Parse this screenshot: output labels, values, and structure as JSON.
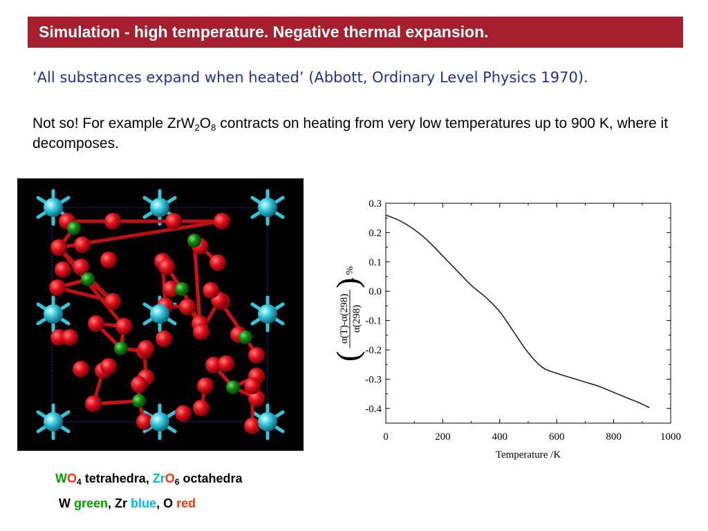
{
  "title": "Simulation - high temperature.  Negative thermal expansion.",
  "quote": "‘All substances expand when heated’ (Abbott, Ordinary Level Physics 1970).",
  "paragraph": {
    "intro": "Not so!    For example ",
    "formula_zr": "ZrW",
    "formula_w_sub": "2",
    "formula_o": "O",
    "formula_o_sub": "8",
    "rest": " contracts on heating from very low temperatures up to 900 K, where it decomposes."
  },
  "caption": {
    "w": "W",
    "o1": "O",
    "sub4": "4",
    "tetra": " tetrahedra, ",
    "zr": "Zr",
    "o2": "O",
    "sub6": "6",
    "octa": " octahedra",
    "line2_w": "W ",
    "line2_green": "green",
    "line2_comma1": ", Zr ",
    "line2_blue": "blue",
    "line2_comma2": ", O ",
    "line2_red": "red"
  },
  "colors": {
    "title_bg": "#a61f2e",
    "quote": "#1f2f9e",
    "w_atom": "#0e8a0e",
    "zr_atom": "#34c6dc",
    "o_atom": "#e0101a",
    "green_text": "#00a000",
    "blue_text": "#00b8f0",
    "red_text": "#ff3300"
  },
  "chart_data": {
    "type": "line",
    "xlabel": "Temperature /K",
    "ylabel": "(α(T)-α(298) / α(298)), %",
    "ylabel_num": "α(T)-α(298)",
    "ylabel_den": "α(298)",
    "ylabel_unit": ", %",
    "xlim": [
      0,
      1000
    ],
    "ylim": [
      -0.45,
      0.3
    ],
    "xticks": [
      "0",
      "200",
      "400",
      "600",
      "800",
      "1000"
    ],
    "xtick_values": [
      0,
      200,
      400,
      600,
      800,
      1000
    ],
    "yticks": [
      "0.3",
      "0.2",
      "0.1",
      "0.0",
      "-0.1",
      "-0.2",
      "-0.3",
      "-0.4"
    ],
    "ytick_values": [
      0.3,
      0.2,
      0.1,
      0.0,
      -0.1,
      -0.2,
      -0.3,
      -0.4
    ],
    "series": [
      {
        "x": [
          0,
          50,
          100,
          150,
          200,
          250,
          300,
          350,
          400,
          450,
          500,
          550,
          600,
          650,
          700,
          750,
          800,
          850,
          900,
          925
        ],
        "y": [
          0.26,
          0.24,
          0.21,
          0.17,
          0.12,
          0.07,
          0.02,
          -0.02,
          -0.07,
          -0.14,
          -0.21,
          -0.26,
          -0.28,
          -0.295,
          -0.31,
          -0.325,
          -0.345,
          -0.365,
          -0.385,
          -0.397
        ]
      }
    ]
  }
}
